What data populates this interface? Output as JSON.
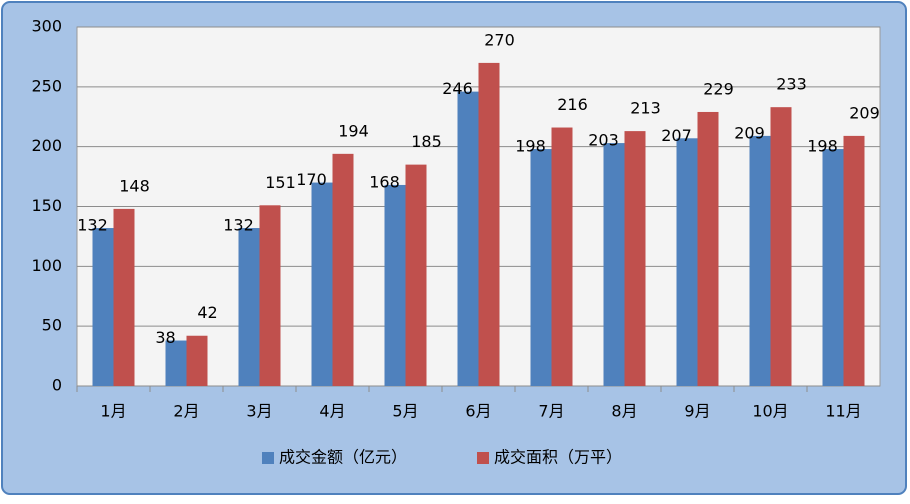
{
  "chart_data": {
    "type": "bar",
    "categories": [
      "1月",
      "2月",
      "3月",
      "4月",
      "5月",
      "6月",
      "7月",
      "8月",
      "9月",
      "10月",
      "11月"
    ],
    "series": [
      {
        "name": "成交金额（亿元）",
        "color": "#4f81bd",
        "values": [
          132,
          38,
          132,
          170,
          168,
          246,
          198,
          203,
          207,
          209,
          198
        ]
      },
      {
        "name": "成交面积（万平）",
        "color": "#c0504d",
        "values": [
          148,
          42,
          151,
          194,
          185,
          270,
          216,
          213,
          229,
          233,
          209
        ]
      }
    ],
    "ylim": [
      0,
      300
    ],
    "yticks": [
      0,
      50,
      100,
      150,
      200,
      250,
      300
    ],
    "grid": true,
    "legend": "bottom"
  }
}
